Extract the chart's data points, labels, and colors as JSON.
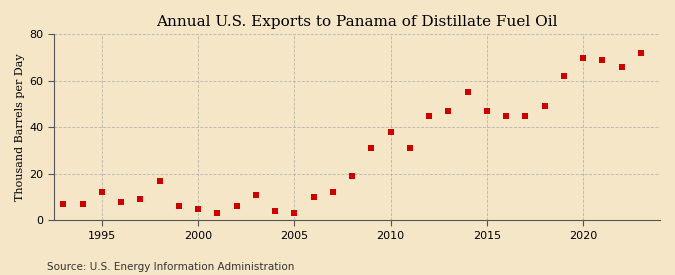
{
  "title": "Annual U.S. Exports to Panama of Distillate Fuel Oil",
  "ylabel": "Thousand Barrels per Day",
  "source": "Source: U.S. Energy Information Administration",
  "background_color": "#f5e6c8",
  "plot_background_color": "#f5e6c8",
  "marker_color": "#cc0000",
  "grid_color": "#aaaaaa",
  "xlim": [
    1992.5,
    2024
  ],
  "ylim": [
    0,
    80
  ],
  "yticks": [
    0,
    20,
    40,
    60,
    80
  ],
  "xticks": [
    1995,
    2000,
    2005,
    2010,
    2015,
    2020
  ],
  "years": [
    1993,
    1994,
    1995,
    1996,
    1997,
    1998,
    1999,
    2000,
    2001,
    2002,
    2003,
    2004,
    2005,
    2006,
    2007,
    2008,
    2009,
    2010,
    2011,
    2012,
    2013,
    2014,
    2015,
    2016,
    2017,
    2018,
    2019,
    2020,
    2021,
    2022,
    2023
  ],
  "values": [
    7,
    7,
    12,
    8,
    9,
    17,
    6,
    5,
    3,
    6,
    11,
    4,
    3,
    10,
    12,
    19,
    31,
    38,
    31,
    45,
    47,
    55,
    47,
    45,
    45,
    49,
    62,
    70,
    69,
    66,
    72
  ],
  "title_fontsize": 11,
  "ylabel_fontsize": 8,
  "tick_fontsize": 8,
  "source_fontsize": 7.5
}
